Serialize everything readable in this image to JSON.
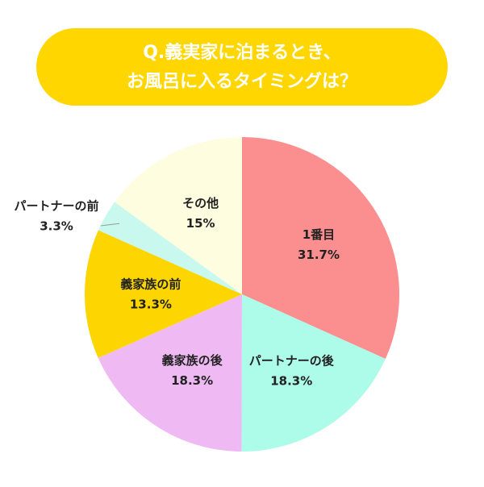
{
  "chart_data": {
    "type": "pie",
    "title": [
      "Q.義実家に泊まるとき、",
      "お風呂に入るタイミングは？"
    ],
    "categories": [
      "1番目",
      "パートナーの後",
      "義家族の後",
      "義家族の前",
      "パートナーの前",
      "その他"
    ],
    "values": [
      31.7,
      18.3,
      18.3,
      13.3,
      3.3,
      15
    ],
    "value_labels": [
      "31.7%",
      "18.3%",
      "18.3%",
      "13.3%",
      "3.3%",
      "15%"
    ],
    "colors": [
      "#fb8f8f",
      "#adfbe9",
      "#efbaf3",
      "#fdd500",
      "#c9f8ee",
      "#fffde0"
    ]
  }
}
